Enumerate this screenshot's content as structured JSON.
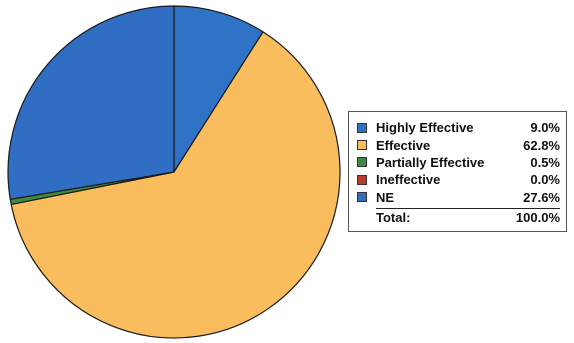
{
  "chart_data": {
    "type": "pie",
    "slices": [
      {
        "label": "Highly Effective",
        "value": 9.0,
        "display": "9.0%",
        "color": "#2f73c6"
      },
      {
        "label": "Effective",
        "value": 62.8,
        "display": "62.8%",
        "color": "#f9bd5e"
      },
      {
        "label": "Partially Effective",
        "value": 0.5,
        "display": "0.5%",
        "color": "#3f8a3f"
      },
      {
        "label": "Ineffective",
        "value": 0.0,
        "display": "0.0%",
        "color": "#bb3a2e"
      },
      {
        "label": "NE",
        "value": 27.6,
        "display": "27.6%",
        "color": "#2f6ec2"
      }
    ],
    "total_label": "Total:",
    "total_value": "100.0%",
    "legend_position": "right"
  }
}
